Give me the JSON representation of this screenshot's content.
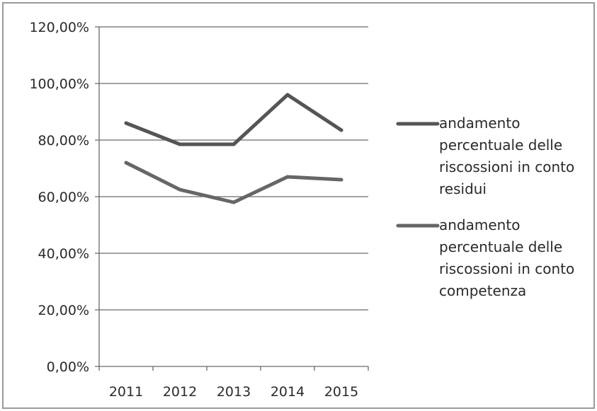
{
  "chart_data": {
    "type": "line",
    "title": "",
    "xlabel": "",
    "ylabel": "",
    "categories": [
      "2011",
      "2012",
      "2013",
      "2014",
      "2015"
    ],
    "y_ticks": [
      "0,00%",
      "20,00%",
      "40,00%",
      "60,00%",
      "80,00%",
      "100,00%",
      "120,00%"
    ],
    "ylim": [
      0,
      120
    ],
    "grid": true,
    "legend_position": "right",
    "series": [
      {
        "name": "andamento percentuale delle riscossioni in conto residui",
        "legend_lines": [
          "andamento",
          "percentuale delle",
          "riscossioni  in conto",
          "residui"
        ],
        "values": [
          86,
          78.5,
          78.5,
          96,
          83.5
        ],
        "color": "#555555"
      },
      {
        "name": "andamento percentuale delle riscossioni in conto competenza",
        "legend_lines": [
          "andamento",
          "percentuale delle",
          "riscossioni  in conto",
          "competenza"
        ],
        "values": [
          72,
          62.5,
          58,
          67,
          66
        ],
        "color": "#666666"
      }
    ]
  }
}
